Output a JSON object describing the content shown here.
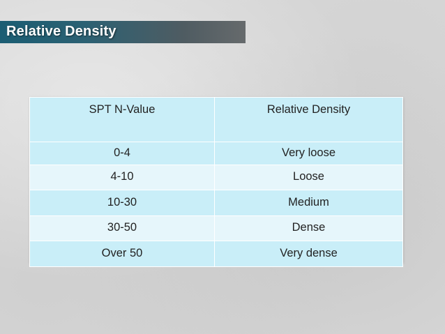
{
  "slide": {
    "title": "Relative Density"
  },
  "table": {
    "headers": [
      "SPT N-Value",
      "Relative Density"
    ],
    "rows": [
      [
        "0-4",
        "Very loose"
      ],
      [
        "4-10",
        "Loose"
      ],
      [
        "10-30",
        "Medium"
      ],
      [
        "30-50",
        "Dense"
      ],
      [
        "Over 50",
        "Very dense"
      ]
    ]
  },
  "colors": {
    "title_bar_start": "#1b5d73",
    "title_bar_end": "#666a6c",
    "row_dark": "#c9eef8",
    "row_light": "#e6f6fb",
    "background": "#d9d9d9"
  }
}
